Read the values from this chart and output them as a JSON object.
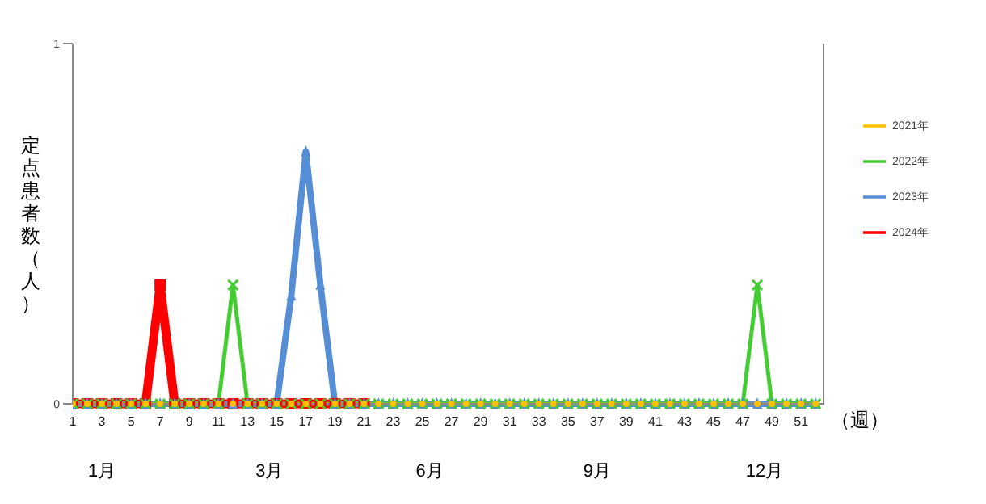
{
  "chart_data": {
    "type": "line",
    "xlabel": "（週）",
    "ylabel": "定点患者数（人）",
    "x": [
      1,
      2,
      3,
      4,
      5,
      6,
      7,
      8,
      9,
      10,
      11,
      12,
      13,
      14,
      15,
      16,
      17,
      18,
      19,
      20,
      21,
      22,
      23,
      24,
      25,
      26,
      27,
      28,
      29,
      30,
      31,
      32,
      33,
      34,
      35,
      36,
      37,
      38,
      39,
      40,
      41,
      42,
      43,
      44,
      45,
      46,
      47,
      48,
      49,
      50,
      51,
      52
    ],
    "series": [
      {
        "name": "2021年",
        "color": "#ffc000",
        "marker": "circle",
        "values": [
          0,
          0,
          0,
          0,
          0,
          0,
          0,
          0,
          0,
          0,
          0,
          0,
          0,
          0,
          0,
          0,
          0,
          0,
          0,
          0,
          0,
          0,
          0,
          0,
          0,
          0,
          0,
          0,
          0,
          0,
          0,
          0,
          0,
          0,
          0,
          0,
          0,
          0,
          0,
          0,
          0,
          0,
          0,
          0,
          0,
          0,
          0,
          0,
          0,
          0,
          0,
          0
        ]
      },
      {
        "name": "2022年",
        "color": "#44cc33",
        "marker": "cross",
        "values": [
          0,
          0,
          0,
          0,
          0,
          0,
          0,
          0,
          0,
          0,
          0,
          0.33,
          0,
          0,
          0,
          0,
          0,
          0,
          0,
          0,
          0,
          0,
          0,
          0,
          0,
          0,
          0,
          0,
          0,
          0,
          0,
          0,
          0,
          0,
          0,
          0,
          0,
          0,
          0,
          0,
          0,
          0,
          0,
          0,
          0,
          0,
          0,
          0.33,
          0,
          0,
          0,
          0
        ]
      },
      {
        "name": "2023年",
        "color": "#558ed5",
        "marker": "triangle",
        "values": [
          0,
          0,
          0,
          0,
          0,
          0,
          0,
          0,
          0,
          0,
          0,
          0,
          0,
          0,
          0,
          0.3,
          0.7,
          0.33,
          0,
          0,
          0,
          0,
          0,
          0,
          0,
          0,
          0,
          0,
          0,
          0,
          0,
          0,
          0,
          0,
          0,
          0,
          0,
          0,
          0,
          0,
          0,
          0,
          0,
          0,
          0,
          0,
          0,
          0,
          0,
          0,
          0,
          0
        ]
      },
      {
        "name": "2024年",
        "color": "#ff0000",
        "marker": "square",
        "values": [
          0,
          0,
          0,
          0,
          0,
          0,
          0.33,
          0,
          0,
          0,
          0,
          0,
          0,
          0,
          0,
          0,
          0,
          0,
          0,
          0,
          0,
          null,
          null,
          null,
          null,
          null,
          null,
          null,
          null,
          null,
          null,
          null,
          null,
          null,
          null,
          null,
          null,
          null,
          null,
          null,
          null,
          null,
          null,
          null,
          null,
          null,
          null,
          null,
          null,
          null,
          null,
          null
        ]
      }
    ],
    "xlim": [
      1,
      52.6
    ],
    "xticks": [
      1,
      3,
      5,
      7,
      9,
      11,
      13,
      15,
      17,
      19,
      21,
      23,
      25,
      27,
      29,
      31,
      33,
      35,
      37,
      39,
      41,
      43,
      45,
      47,
      49,
      51
    ],
    "ylim": [
      0,
      1
    ],
    "yticks": [
      0,
      1
    ],
    "grid": false,
    "legend": "right",
    "annotations": [
      "1月",
      "3月",
      "6月",
      "9月",
      "12月"
    ]
  }
}
